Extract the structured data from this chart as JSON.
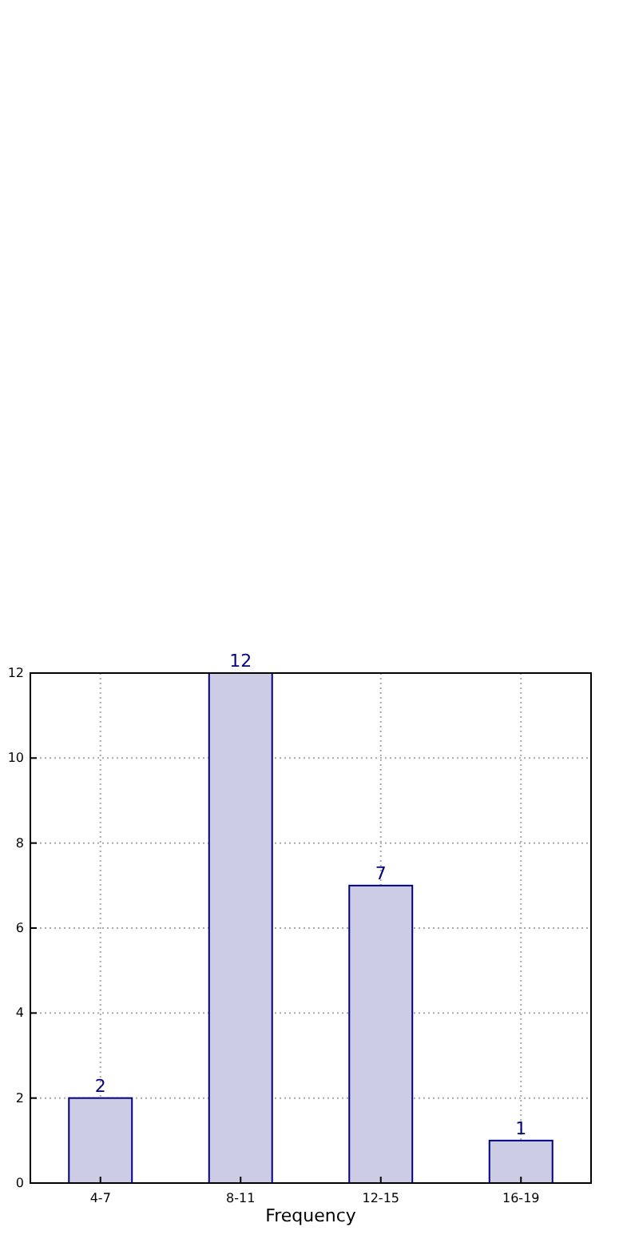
{
  "chart_data": {
    "type": "bar",
    "xlabel": "Frequency",
    "categories": [
      "4-7",
      "8-11",
      "12-15",
      "16-19"
    ],
    "values": [
      2,
      12,
      7,
      1
    ],
    "color": "#cccce5",
    "ylim": [
      0,
      12
    ],
    "yticks": [
      0,
      2,
      4,
      6,
      8,
      10,
      12
    ],
    "grid": true,
    "data_labels": true
  }
}
